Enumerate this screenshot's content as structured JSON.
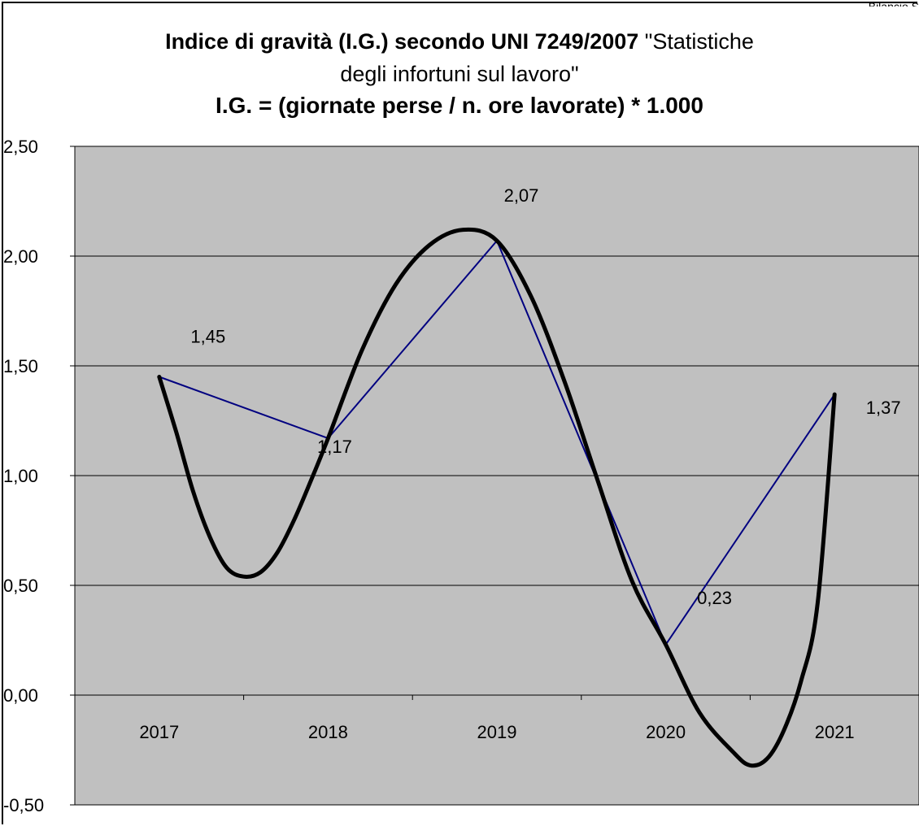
{
  "header": {
    "right_text": "Bilancio S"
  },
  "chart_data": {
    "type": "line",
    "title_line1_bold": "Indice di gravità (I.G.)  secondo UNI 7249/2007",
    "title_line1_normal": " \"Statistiche",
    "title_line2": "degli infortuni  sul lavoro\"",
    "title_line3": "I.G. = (giornate perse / n. ore lavorate) * 1.000",
    "xlabel": "",
    "ylabel": "",
    "categories": [
      "2017",
      "2018",
      "2019",
      "2020",
      "2021"
    ],
    "values": [
      1.45,
      1.17,
      2.07,
      0.23,
      1.37
    ],
    "data_labels": [
      "1,45",
      "1,17",
      "2,07",
      "0,23",
      "1,37"
    ],
    "y_ticks": [
      -0.5,
      0,
      0.5,
      1,
      1.5,
      2,
      2.5
    ],
    "y_tick_labels": [
      "-0,50",
      "0,00",
      "0,50",
      "1,00",
      "1,50",
      "2,00",
      "2,50"
    ],
    "ylim": [
      -0.5,
      2.5
    ],
    "grid": true,
    "trend_line": {
      "type": "polynomial",
      "points": [
        [
          2017.0,
          1.45
        ],
        [
          2017.1,
          1.2
        ],
        [
          2017.2,
          0.93
        ],
        [
          2017.3,
          0.72
        ],
        [
          2017.4,
          0.58
        ],
        [
          2017.5,
          0.54
        ],
        [
          2017.6,
          0.56
        ],
        [
          2017.7,
          0.65
        ],
        [
          2017.8,
          0.8
        ],
        [
          2017.9,
          0.98
        ],
        [
          2018.0,
          1.17
        ],
        [
          2018.2,
          1.57
        ],
        [
          2018.4,
          1.87
        ],
        [
          2018.6,
          2.05
        ],
        [
          2018.8,
          2.12
        ],
        [
          2019.0,
          2.07
        ],
        [
          2019.2,
          1.82
        ],
        [
          2019.4,
          1.43
        ],
        [
          2019.6,
          0.97
        ],
        [
          2019.8,
          0.52
        ],
        [
          2020.0,
          0.23
        ],
        [
          2020.2,
          -0.08
        ],
        [
          2020.4,
          -0.26
        ],
        [
          2020.5,
          -0.32
        ],
        [
          2020.6,
          -0.29
        ],
        [
          2020.7,
          -0.16
        ],
        [
          2020.8,
          0.06
        ],
        [
          2020.9,
          0.42
        ],
        [
          2021.0,
          1.37
        ]
      ]
    },
    "colors": {
      "plot_background": "#c0c0c0",
      "series_line": "#000080",
      "trend_line": "#000000",
      "grid": "#000000"
    }
  }
}
